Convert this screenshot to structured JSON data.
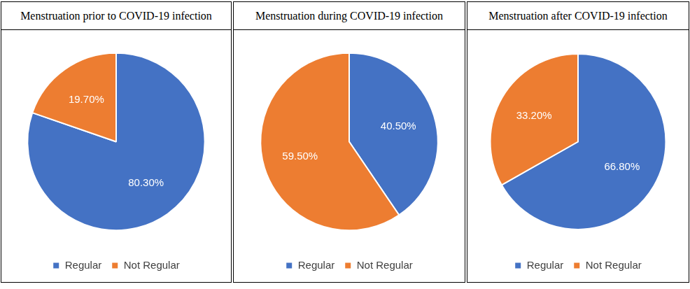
{
  "chart_data": [
    {
      "type": "pie",
      "title": "Menstruation prior to COVID-19 infection",
      "categories": [
        "Regular",
        "Not Regular"
      ],
      "values": [
        80.3,
        19.7
      ],
      "value_labels": [
        "80.30%",
        "19.70%"
      ],
      "colors": [
        "#4472c4",
        "#ed7d31"
      ],
      "legend": "bottom",
      "data_labels": true
    },
    {
      "type": "pie",
      "title": "Menstruation during COVID-19 infection",
      "categories": [
        "Regular",
        "Not Regular"
      ],
      "values": [
        40.5,
        59.5
      ],
      "value_labels": [
        "40.50%",
        "59.50%"
      ],
      "colors": [
        "#4472c4",
        "#ed7d31"
      ],
      "legend": "bottom",
      "data_labels": true
    },
    {
      "type": "pie",
      "title": "Menstruation after COVID-19 infection",
      "categories": [
        "Regular",
        "Not Regular"
      ],
      "values": [
        66.8,
        33.2
      ],
      "value_labels": [
        "66.80%",
        "33.20%"
      ],
      "colors": [
        "#4472c4",
        "#ed7d31"
      ],
      "legend": "bottom",
      "data_labels": true
    }
  ]
}
